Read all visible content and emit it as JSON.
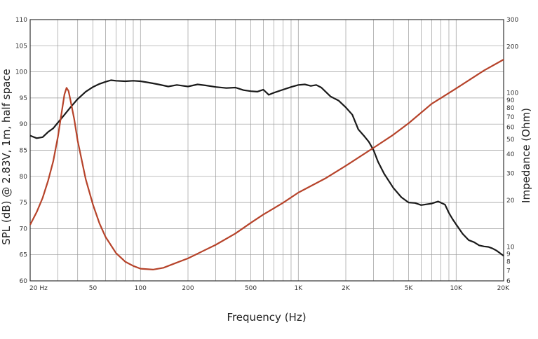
{
  "chart_data": {
    "type": "line",
    "xlabel": "Frequency (Hz)",
    "ylabel_left": "SPL (dB) @ 2.83V, 1m, half space",
    "ylabel_right": "Impedance (Ohm)",
    "x_scale": "log",
    "xlim": [
      20,
      20000
    ],
    "ylim_left": [
      60,
      110
    ],
    "ylim_right_log": [
      6,
      300
    ],
    "grid": true,
    "x_ticks": [
      {
        "value": 20,
        "label": "20 Hz"
      },
      {
        "value": 50,
        "label": "50"
      },
      {
        "value": 100,
        "label": "100"
      },
      {
        "value": 200,
        "label": "200"
      },
      {
        "value": 500,
        "label": "500"
      },
      {
        "value": 1000,
        "label": "1K"
      },
      {
        "value": 2000,
        "label": "2K"
      },
      {
        "value": 5000,
        "label": "5K"
      },
      {
        "value": 10000,
        "label": "10K"
      },
      {
        "value": 20000,
        "label": "20K"
      }
    ],
    "y_left_ticks": [
      "60",
      "65",
      "70",
      "75",
      "80",
      "85",
      "90",
      "95",
      "100",
      "105",
      "110"
    ],
    "y_right_ticks": [
      {
        "value": 300,
        "label": "300"
      },
      {
        "value": 200,
        "label": "200"
      },
      {
        "value": 100,
        "label": "100"
      },
      {
        "value": 90,
        "label": "90"
      },
      {
        "value": 80,
        "label": "80"
      },
      {
        "value": 70,
        "label": "70"
      },
      {
        "value": 60,
        "label": "60"
      },
      {
        "value": 50,
        "label": "50"
      },
      {
        "value": 40,
        "label": "40"
      },
      {
        "value": 30,
        "label": "30"
      },
      {
        "value": 20,
        "label": "20"
      },
      {
        "value": 10,
        "label": "10"
      },
      {
        "value": 9,
        "label": "9"
      },
      {
        "value": 8,
        "label": "8"
      },
      {
        "value": 7,
        "label": "7"
      },
      {
        "value": 6,
        "label": "6"
      }
    ],
    "series": [
      {
        "axis": "left",
        "color": "#1a1a1a",
        "points": [
          [
            20,
            87.8
          ],
          [
            22,
            87.3
          ],
          [
            24,
            87.5
          ],
          [
            26,
            88.5
          ],
          [
            28,
            89.2
          ],
          [
            30,
            90.3
          ],
          [
            33,
            91.8
          ],
          [
            36,
            93.2
          ],
          [
            40,
            94.8
          ],
          [
            45,
            96.2
          ],
          [
            50,
            97.1
          ],
          [
            55,
            97.7
          ],
          [
            60,
            98.1
          ],
          [
            65,
            98.4
          ],
          [
            70,
            98.3
          ],
          [
            80,
            98.2
          ],
          [
            90,
            98.3
          ],
          [
            100,
            98.2
          ],
          [
            110,
            98.0
          ],
          [
            120,
            97.8
          ],
          [
            130,
            97.6
          ],
          [
            150,
            97.2
          ],
          [
            170,
            97.5
          ],
          [
            200,
            97.2
          ],
          [
            230,
            97.6
          ],
          [
            260,
            97.4
          ],
          [
            300,
            97.1
          ],
          [
            350,
            96.9
          ],
          [
            400,
            97.0
          ],
          [
            450,
            96.5
          ],
          [
            500,
            96.3
          ],
          [
            550,
            96.2
          ],
          [
            600,
            96.6
          ],
          [
            650,
            95.6
          ],
          [
            700,
            96.0
          ],
          [
            800,
            96.6
          ],
          [
            900,
            97.1
          ],
          [
            1000,
            97.5
          ],
          [
            1100,
            97.6
          ],
          [
            1200,
            97.3
          ],
          [
            1300,
            97.5
          ],
          [
            1400,
            97.0
          ],
          [
            1600,
            95.3
          ],
          [
            1800,
            94.5
          ],
          [
            2000,
            93.2
          ],
          [
            2200,
            91.8
          ],
          [
            2400,
            89.0
          ],
          [
            2600,
            87.8
          ],
          [
            2800,
            86.6
          ],
          [
            3000,
            85.0
          ],
          [
            3200,
            82.8
          ],
          [
            3500,
            80.5
          ],
          [
            4000,
            77.8
          ],
          [
            4500,
            76.0
          ],
          [
            5000,
            75.0
          ],
          [
            5500,
            74.9
          ],
          [
            6000,
            74.5
          ],
          [
            7000,
            74.8
          ],
          [
            7700,
            75.2
          ],
          [
            8500,
            74.6
          ],
          [
            9000,
            73.0
          ],
          [
            9500,
            71.8
          ],
          [
            10000,
            70.8
          ],
          [
            11000,
            69.0
          ],
          [
            12000,
            67.8
          ],
          [
            13000,
            67.4
          ],
          [
            14000,
            66.8
          ],
          [
            15000,
            66.6
          ],
          [
            16000,
            66.5
          ],
          [
            17000,
            66.2
          ],
          [
            18000,
            65.8
          ],
          [
            19000,
            65.3
          ],
          [
            20000,
            64.8
          ]
        ]
      },
      {
        "axis": "right",
        "color": "#b6432a",
        "points": [
          [
            20,
            13.9
          ],
          [
            22,
            16.8
          ],
          [
            24,
            20.8
          ],
          [
            26,
            26.9
          ],
          [
            28,
            36
          ],
          [
            30,
            52
          ],
          [
            32,
            80
          ],
          [
            33,
            98
          ],
          [
            34,
            108
          ],
          [
            35,
            103
          ],
          [
            36,
            90
          ],
          [
            38,
            68
          ],
          [
            40,
            49
          ],
          [
            45,
            27.5
          ],
          [
            50,
            18.8
          ],
          [
            55,
            14.2
          ],
          [
            60,
            11.6
          ],
          [
            70,
            9.1
          ],
          [
            80,
            8.0
          ],
          [
            90,
            7.5
          ],
          [
            100,
            7.2
          ],
          [
            120,
            7.1
          ],
          [
            140,
            7.3
          ],
          [
            160,
            7.7
          ],
          [
            200,
            8.4
          ],
          [
            250,
            9.4
          ],
          [
            300,
            10.3
          ],
          [
            400,
            12.2
          ],
          [
            500,
            14.3
          ],
          [
            600,
            16.2
          ],
          [
            800,
            19.3
          ],
          [
            1000,
            22.5
          ],
          [
            1500,
            28.0
          ],
          [
            2000,
            33.6
          ],
          [
            3000,
            44.0
          ],
          [
            4000,
            53.5
          ],
          [
            5000,
            63.5
          ],
          [
            7000,
            85.0
          ],
          [
            10000,
            107
          ],
          [
            15000,
            140
          ],
          [
            20000,
            165
          ]
        ]
      }
    ]
  }
}
